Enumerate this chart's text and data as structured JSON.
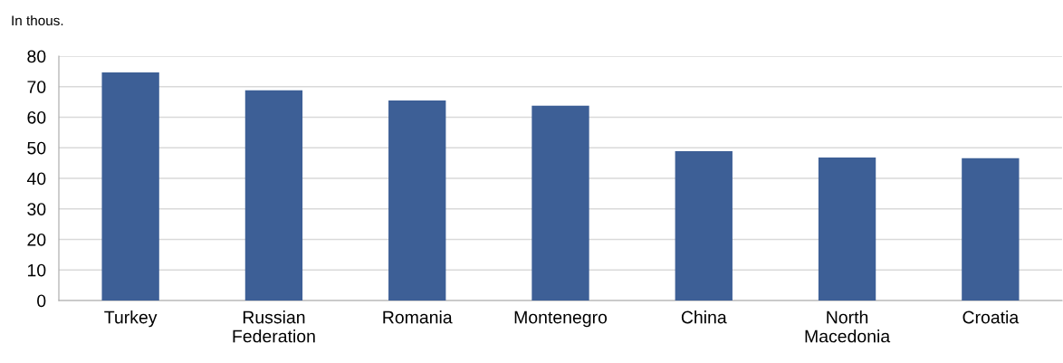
{
  "chart_data": {
    "type": "bar",
    "ylabel": "In thous.",
    "categories": [
      "Turkey",
      "Russian\nFederation",
      "Romania",
      "Montenegro",
      "China",
      "North\nMacedonia",
      "Croatia"
    ],
    "values": [
      74.7,
      68.8,
      65.5,
      63.8,
      48.9,
      46.8,
      46.6
    ],
    "color": "#3d5f96",
    "ylim": [
      0,
      80
    ],
    "yticks": [
      0,
      10,
      20,
      30,
      40,
      50,
      60,
      70,
      80
    ],
    "grid": "y",
    "legend": false
  }
}
